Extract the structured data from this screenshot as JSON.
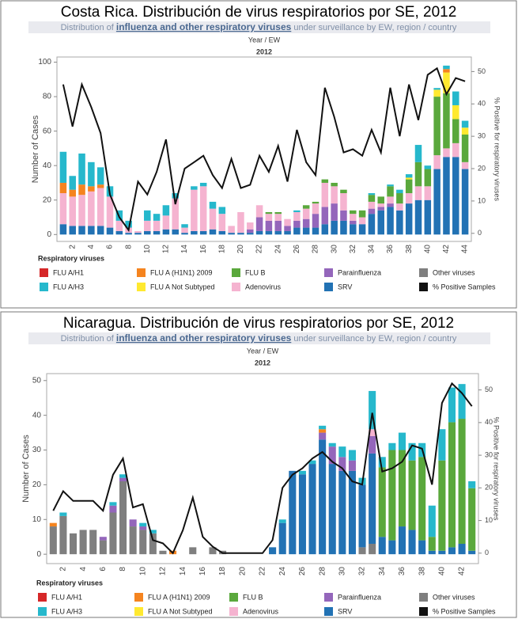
{
  "chart_data": [
    {
      "type": "bar",
      "title": "Costa Rica. Distribución de virus respiratorios por SE, 2012",
      "subtitle": [
        "Distribution of ",
        "influenza and other respiratory viruses",
        " under surveillance by EW, region / country"
      ],
      "x_header": "Year / EW",
      "x_group": "2012",
      "ylabel": "Number of Cases",
      "y2label": "% Positive for respiratory viruses",
      "legend_title": "Respiratory viruses",
      "categories": [
        null,
        "2",
        null,
        "4",
        null,
        "6",
        null,
        "8",
        null,
        "10",
        null,
        "12",
        null,
        "14",
        null,
        "16",
        null,
        "18",
        null,
        "20",
        null,
        "22",
        null,
        "24",
        null,
        "26",
        null,
        "28",
        null,
        "30",
        null,
        "32",
        null,
        "34",
        null,
        "36",
        null,
        "38",
        null,
        "40",
        null,
        "42",
        null,
        "44"
      ],
      "ylim": [
        -4,
        103
      ],
      "yticks": [
        0,
        20,
        40,
        60,
        80,
        100
      ],
      "y2lim": [
        -2.5,
        54.5
      ],
      "y2ticks": [
        0,
        10,
        20,
        30,
        40,
        50
      ],
      "series": [
        {
          "name": "FLU A/H1",
          "color": "#d62728",
          "values": [
            0,
            0,
            0,
            0,
            0,
            0,
            0,
            0,
            0,
            0,
            0,
            0,
            0,
            0,
            0,
            0,
            0,
            0,
            0,
            0,
            0,
            0,
            0,
            0,
            0,
            0,
            0,
            0,
            0,
            0,
            0,
            0,
            0,
            0,
            0,
            0,
            0,
            0,
            0,
            0,
            0,
            0,
            0,
            0
          ]
        },
        {
          "name": "FLU A/H3",
          "color": "#26b8cc",
          "values": [
            18,
            8,
            18,
            14,
            10,
            6,
            6,
            4,
            0,
            6,
            4,
            6,
            3,
            2,
            2,
            2,
            4,
            4,
            0,
            0,
            0,
            0,
            0,
            0,
            0,
            1,
            0,
            0,
            0,
            0,
            0,
            0,
            0,
            1,
            0,
            1,
            2,
            2,
            10,
            2,
            1,
            2,
            8,
            4
          ]
        },
        {
          "name": "FLU A (H1N1) 2009",
          "color": "#f5841f",
          "values": [
            6,
            4,
            6,
            3,
            2,
            0,
            0,
            0,
            0,
            0,
            0,
            0,
            0,
            0,
            0,
            0,
            0,
            0,
            0,
            0,
            0,
            0,
            0,
            0,
            0,
            0,
            0,
            0,
            0,
            0,
            0,
            0,
            0,
            0,
            0,
            0,
            0,
            0,
            0,
            0,
            0,
            2,
            0,
            0
          ]
        },
        {
          "name": "FLU A Not Subtyped",
          "color": "#ffe930",
          "values": [
            0,
            0,
            0,
            0,
            0,
            0,
            0,
            0,
            0,
            0,
            0,
            0,
            0,
            0,
            0,
            0,
            0,
            0,
            0,
            0,
            0,
            0,
            0,
            0,
            0,
            0,
            0,
            0,
            0,
            0,
            0,
            0,
            0,
            0,
            0,
            0,
            0,
            1,
            0,
            0,
            4,
            12,
            8,
            4
          ]
        },
        {
          "name": "FLU B",
          "color": "#5aa83c",
          "values": [
            0,
            0,
            0,
            0,
            0,
            0,
            0,
            0,
            0,
            0,
            0,
            0,
            0,
            0,
            0,
            0,
            0,
            0,
            0,
            0,
            0,
            0,
            1,
            1,
            0,
            0,
            2,
            1,
            2,
            2,
            2,
            2,
            4,
            4,
            4,
            6,
            6,
            8,
            14,
            10,
            34,
            32,
            14,
            16
          ]
        },
        {
          "name": "Adenovirus",
          "color": "#f5b3d0",
          "values": [
            18,
            17,
            18,
            20,
            22,
            18,
            6,
            3,
            1,
            6,
            6,
            8,
            18,
            3,
            24,
            26,
            12,
            10,
            4,
            12,
            4,
            7,
            4,
            4,
            4,
            5,
            6,
            6,
            14,
            10,
            10,
            4,
            4,
            4,
            2,
            4,
            4,
            6,
            8,
            8,
            8,
            5,
            8,
            4
          ]
        },
        {
          "name": "Parainfluenza",
          "color": "#9466bb",
          "values": [
            0,
            0,
            0,
            0,
            0,
            0,
            0,
            0,
            0,
            0,
            0,
            0,
            0,
            0,
            0,
            0,
            0,
            0,
            0,
            0,
            2,
            8,
            6,
            6,
            3,
            4,
            5,
            8,
            10,
            10,
            6,
            2,
            0,
            3,
            2,
            2,
            0,
            0,
            0,
            0,
            0,
            0,
            0,
            0
          ]
        },
        {
          "name": "SRV",
          "color": "#2272b4",
          "values": [
            6,
            5,
            5,
            5,
            5,
            4,
            2,
            1,
            1,
            2,
            2,
            3,
            3,
            1,
            2,
            2,
            3,
            2,
            1,
            1,
            1,
            2,
            2,
            2,
            2,
            4,
            4,
            4,
            6,
            8,
            8,
            6,
            6,
            12,
            14,
            16,
            14,
            18,
            20,
            20,
            38,
            45,
            45,
            38
          ]
        },
        {
          "name": "Other viruses",
          "color": "#7f7f7f",
          "values": [
            0,
            0,
            0,
            0,
            0,
            0,
            0,
            0,
            0,
            0,
            0,
            0,
            0,
            0,
            0,
            0,
            0,
            0,
            0,
            0,
            0,
            0,
            0,
            0,
            0,
            0,
            0,
            0,
            0,
            0,
            0,
            0,
            0,
            0,
            0,
            0,
            0,
            0,
            0,
            0,
            0,
            0,
            0,
            0
          ]
        },
        {
          "name": "% Positive Samples",
          "color": "#111111",
          "type": "line",
          "axis": "y2",
          "values": [
            46,
            33,
            46,
            39,
            31,
            12,
            5,
            1,
            16,
            12,
            19,
            29,
            9,
            20,
            22,
            24,
            18,
            14,
            23,
            14,
            15,
            24,
            19,
            27,
            16,
            32,
            22,
            18,
            45,
            36,
            25,
            26,
            24,
            32,
            25,
            45,
            30,
            46,
            35,
            49,
            51,
            43,
            48,
            47
          ]
        }
      ]
    },
    {
      "type": "bar",
      "title": "Nicaragua. Distribución de virus respiratorios por SE, 2012",
      "subtitle": [
        "Distribution of ",
        "influenza and other respiratory viruses",
        " under surveillance by EW, region / country"
      ],
      "x_header": "Year / EW",
      "x_group": "2012",
      "ylabel": "Number of Cases",
      "y2label": "% Positive for respiratory viruses",
      "legend_title": "Respiratory viruses",
      "categories": [
        null,
        "2",
        null,
        "4",
        null,
        "6",
        null,
        "8",
        null,
        "10",
        null,
        "12",
        null,
        "14",
        null,
        "16",
        null,
        "18",
        null,
        "20",
        null,
        "22",
        null,
        "24",
        null,
        "26",
        null,
        "28",
        null,
        "30",
        null,
        "32",
        null,
        "34",
        null,
        "36",
        null,
        "38",
        null,
        "40",
        null,
        "42",
        null
      ],
      "ylim": [
        -2.7,
        52
      ],
      "yticks": [
        0,
        10,
        20,
        30,
        40,
        50
      ],
      "y2lim": [
        -3.2,
        55
      ],
      "y2ticks": [
        0,
        10,
        20,
        30,
        40,
        50
      ],
      "series": [
        {
          "name": "FLU A/H1",
          "color": "#d62728",
          "values": [
            0,
            0,
            0,
            0,
            0,
            0,
            0,
            0,
            0,
            0,
            0,
            0,
            0,
            0,
            0,
            0,
            0,
            0,
            0,
            0,
            0,
            0,
            0,
            0,
            0,
            0,
            0,
            0,
            0,
            0,
            0,
            0,
            0,
            0,
            0,
            0,
            0,
            0,
            0,
            0,
            0,
            0,
            0
          ]
        },
        {
          "name": "FLU A/H3",
          "color": "#26b8cc",
          "values": [
            0,
            1,
            0,
            0,
            0,
            0,
            1,
            1,
            0,
            1,
            1,
            0,
            0,
            0,
            0,
            0,
            0,
            0,
            0,
            0,
            0,
            0,
            0,
            1,
            0,
            1,
            1,
            1,
            1,
            3,
            3,
            2,
            11,
            3,
            2,
            5,
            5,
            4,
            9,
            9,
            10,
            10,
            2
          ]
        },
        {
          "name": "FLU A (H1N1) 2009",
          "color": "#f5841f",
          "values": [
            1,
            0,
            0,
            0,
            0,
            0,
            0,
            0,
            0,
            0,
            0,
            0,
            1,
            0,
            0,
            0,
            0,
            0,
            0,
            0,
            0,
            0,
            0,
            0,
            0,
            0,
            0,
            1,
            0,
            0,
            0,
            0,
            0,
            0,
            0,
            0,
            0,
            0,
            0,
            0,
            0,
            0,
            0
          ]
        },
        {
          "name": "FLU A Not Subtyped",
          "color": "#ffe930",
          "values": [
            0,
            0,
            0,
            0,
            0,
            0,
            0,
            0,
            0,
            0,
            0,
            0,
            0,
            0,
            0,
            0,
            0,
            0,
            0,
            0,
            0,
            0,
            0,
            0,
            0,
            0,
            0,
            0,
            0,
            0,
            0,
            0,
            0,
            0,
            0,
            0,
            0,
            0,
            0,
            0,
            0,
            0,
            0
          ]
        },
        {
          "name": "FLU B",
          "color": "#5aa83c",
          "values": [
            0,
            0,
            0,
            0,
            0,
            0,
            0,
            0,
            0,
            0,
            0,
            0,
            0,
            0,
            0,
            0,
            0,
            0,
            0,
            0,
            0,
            0,
            0,
            0,
            0,
            0,
            0,
            0,
            0,
            0,
            0,
            0,
            0,
            20,
            26,
            22,
            20,
            24,
            4,
            26,
            36,
            36,
            18
          ]
        },
        {
          "name": "Adenovirus",
          "color": "#f5b3d0",
          "values": [
            0,
            0,
            0,
            0,
            0,
            0,
            0,
            0,
            0,
            0,
            0,
            0,
            0,
            0,
            0,
            0,
            0,
            0,
            0,
            0,
            0,
            0,
            0,
            0,
            0,
            0,
            0,
            0,
            0,
            0,
            0,
            0,
            2,
            0,
            0,
            0,
            0,
            0,
            0,
            0,
            0,
            0,
            0
          ]
        },
        {
          "name": "Parainfluenza",
          "color": "#9466bb",
          "values": [
            0,
            0,
            0,
            0,
            0,
            1,
            2,
            1,
            2,
            1,
            0,
            0,
            0,
            0,
            0,
            0,
            0,
            0,
            0,
            0,
            0,
            0,
            0,
            0,
            0,
            0,
            0,
            2,
            5,
            4,
            3,
            0,
            5,
            0,
            0,
            0,
            0,
            0,
            0,
            0,
            0,
            0,
            0
          ]
        },
        {
          "name": "SRV",
          "color": "#2272b4",
          "values": [
            0,
            0,
            0,
            0,
            0,
            0,
            0,
            0,
            0,
            0,
            0,
            0,
            0,
            0,
            0,
            0,
            0,
            0,
            0,
            0,
            0,
            0,
            2,
            9,
            24,
            23,
            26,
            33,
            26,
            24,
            24,
            18,
            26,
            5,
            4,
            8,
            7,
            4,
            1,
            1,
            2,
            3,
            1
          ]
        },
        {
          "name": "Other viruses",
          "color": "#7f7f7f",
          "values": [
            8,
            11,
            6,
            7,
            7,
            4,
            12,
            21,
            8,
            7,
            6,
            1,
            0,
            0,
            2,
            0,
            2,
            1,
            0,
            0,
            0,
            0,
            0,
            0,
            0,
            0,
            0,
            0,
            0,
            0,
            0,
            2,
            3,
            0,
            0,
            0,
            0,
            0,
            0,
            0,
            0,
            0,
            0
          ]
        },
        {
          "name": "% Positive Samples",
          "color": "#111111",
          "type": "line",
          "axis": "y2",
          "values": [
            13,
            19,
            16,
            16,
            16,
            13,
            24,
            29,
            14,
            15,
            4,
            3,
            0,
            7,
            17,
            5,
            2,
            0,
            0,
            0,
            0,
            0,
            4,
            20,
            24,
            26,
            29,
            31,
            28,
            26,
            22,
            21,
            43,
            25,
            26,
            28,
            33,
            32,
            21,
            46,
            52,
            49,
            45
          ]
        }
      ]
    }
  ]
}
